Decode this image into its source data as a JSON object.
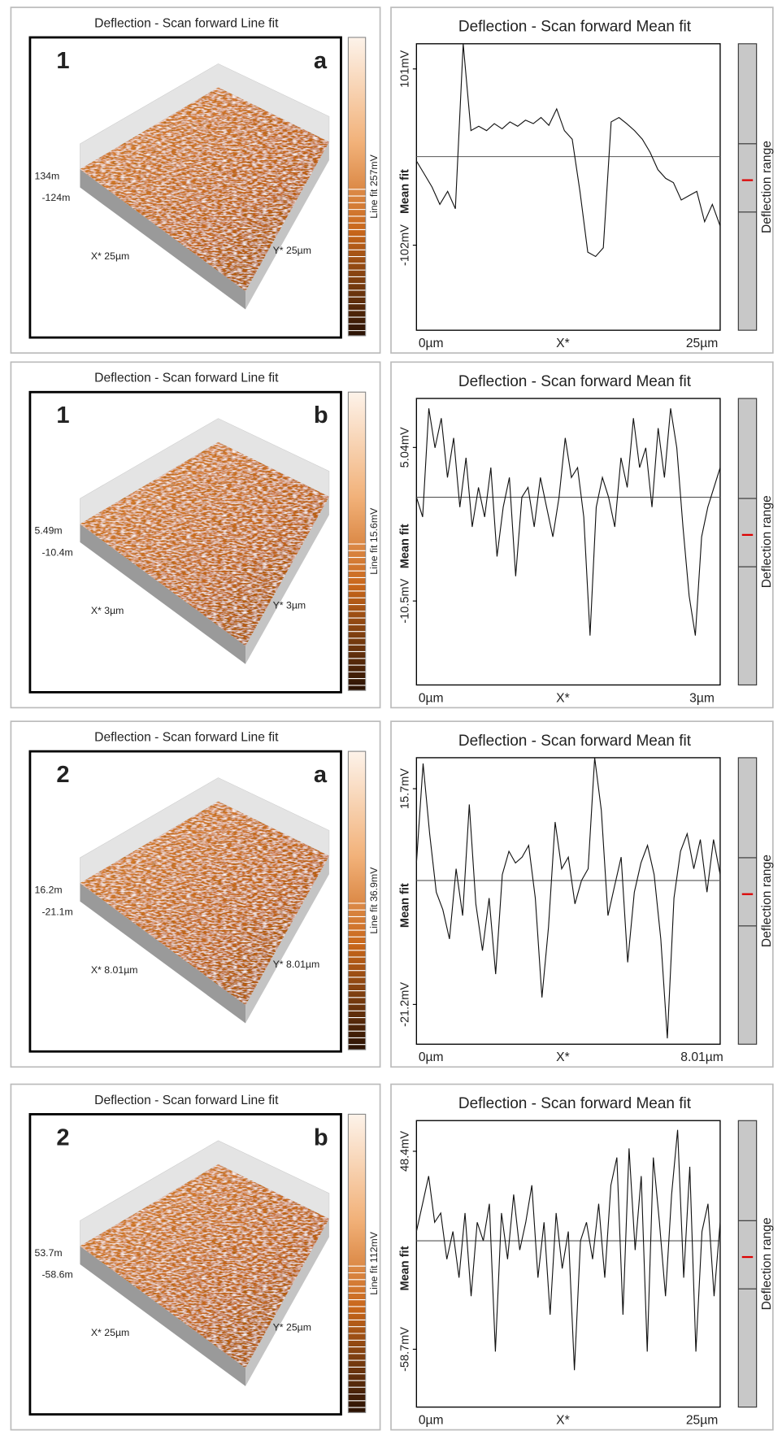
{
  "panels": [
    {
      "surface": {
        "title": "Deflection - Scan forward   Line fit",
        "number": "1",
        "letter": "a",
        "z_max": "134m",
        "z_min": "-124m",
        "x_label": "X* 25µm",
        "y_label": "Y* 25µm",
        "colorbar_label": "Line fit 257mV"
      },
      "profile": {
        "title": "Deflection - Scan forward   Mean fit",
        "ylabel": "Mean fit",
        "ylim": [
          -200,
          130
        ],
        "yticks": [
          {
            "value": 101,
            "label": "101mV"
          },
          {
            "value": -102,
            "label": "-102mV"
          }
        ],
        "x_labels": [
          "0µm",
          "X*",
          "25µm"
        ],
        "range_label": "Deflection range",
        "mean_line": 0,
        "values": [
          -5,
          -20,
          -35,
          -55,
          -40,
          -60,
          130,
          30,
          35,
          30,
          38,
          32,
          40,
          35,
          42,
          38,
          45,
          36,
          55,
          30,
          20,
          -40,
          -110,
          -115,
          -105,
          40,
          45,
          38,
          30,
          20,
          5,
          -15,
          -25,
          -30,
          -50,
          -45,
          -40,
          -75,
          -55,
          -80
        ]
      }
    },
    {
      "surface": {
        "title": "Deflection - Scan forward   Line fit",
        "number": "1",
        "letter": "b",
        "z_max": "5.49m",
        "z_min": "-10.4m",
        "x_label": "X* 3µm",
        "y_label": "Y* 3µm",
        "colorbar_label": "Line fit 15.6mV"
      },
      "profile": {
        "title": "Deflection - Scan forward   Mean fit",
        "ylabel": "Mean fit",
        "ylim": [
          -19,
          10
        ],
        "yticks": [
          {
            "value": 5.04,
            "label": "5.04mV"
          },
          {
            "value": -10.5,
            "label": "-10.5mV"
          }
        ],
        "x_labels": [
          "0µm",
          "X*",
          "3µm"
        ],
        "range_label": "Deflection range",
        "mean_line": 0,
        "values": [
          0,
          -2,
          9,
          5,
          8,
          2,
          6,
          -1,
          4,
          -3,
          1,
          -2,
          3,
          -6,
          -1,
          2,
          -8,
          0,
          1,
          -3,
          2,
          -1,
          -4,
          0,
          6,
          2,
          3,
          -2,
          -14,
          -1,
          2,
          0,
          -3,
          4,
          1,
          8,
          3,
          5,
          -1,
          7,
          2,
          9,
          5,
          -3,
          -10,
          -14,
          -4,
          -1,
          1,
          3
        ]
      }
    },
    {
      "surface": {
        "title": "Deflection - Scan forward   Line fit",
        "number": "2",
        "letter": "a",
        "z_max": "16.2m",
        "z_min": "-21.1m",
        "x_label": "X* 8.01µm",
        "y_label": "Y* 8.01µm",
        "colorbar_label": "Line fit 36.9mV"
      },
      "profile": {
        "title": "Deflection - Scan forward   Mean fit",
        "ylabel": "Mean fit",
        "ylim": [
          -28,
          21
        ],
        "yticks": [
          {
            "value": 15.7,
            "label": "15.7mV"
          },
          {
            "value": -21.2,
            "label": "-21.2mV"
          }
        ],
        "x_labels": [
          "0µm",
          "X*",
          "8.01µm"
        ],
        "range_label": "Deflection range",
        "mean_line": 0,
        "values": [
          3,
          20,
          8,
          -2,
          -5,
          -10,
          2,
          -6,
          13,
          -4,
          -12,
          -3,
          -16,
          1,
          5,
          3,
          4,
          6,
          -3,
          -20,
          -8,
          10,
          2,
          4,
          -4,
          0,
          2,
          21,
          12,
          -6,
          -1,
          4,
          -14,
          -2,
          3,
          6,
          1,
          -10,
          -27,
          -3,
          5,
          8,
          2,
          7,
          -2,
          7,
          1
        ]
      }
    },
    {
      "surface": {
        "title": "Deflection - Scan forward   Line fit",
        "number": "2",
        "letter": "b",
        "z_max": "53.7m",
        "z_min": "-58.6m",
        "x_label": "X* 25µm",
        "y_label": "Y* 25µm",
        "colorbar_label": "Line fit 112mV"
      },
      "profile": {
        "title": "Deflection - Scan forward   Mean fit",
        "ylabel": "Mean fit",
        "ylim": [
          -90,
          65
        ],
        "yticks": [
          {
            "value": 48.4,
            "label": "48.4mV"
          },
          {
            "value": -58.7,
            "label": "-58.7mV"
          }
        ],
        "x_labels": [
          "0µm",
          "X*",
          "25µm"
        ],
        "range_label": "Deflection range",
        "mean_line": 0,
        "values": [
          5,
          20,
          35,
          10,
          15,
          -10,
          5,
          -20,
          15,
          -30,
          10,
          0,
          20,
          -60,
          15,
          -10,
          25,
          -5,
          10,
          30,
          -20,
          10,
          -40,
          15,
          -15,
          5,
          -70,
          0,
          10,
          -10,
          20,
          -20,
          30,
          45,
          -40,
          50,
          -5,
          35,
          -60,
          45,
          10,
          -30,
          25,
          60,
          -20,
          40,
          -60,
          5,
          20,
          -30,
          10
        ]
      }
    }
  ]
}
